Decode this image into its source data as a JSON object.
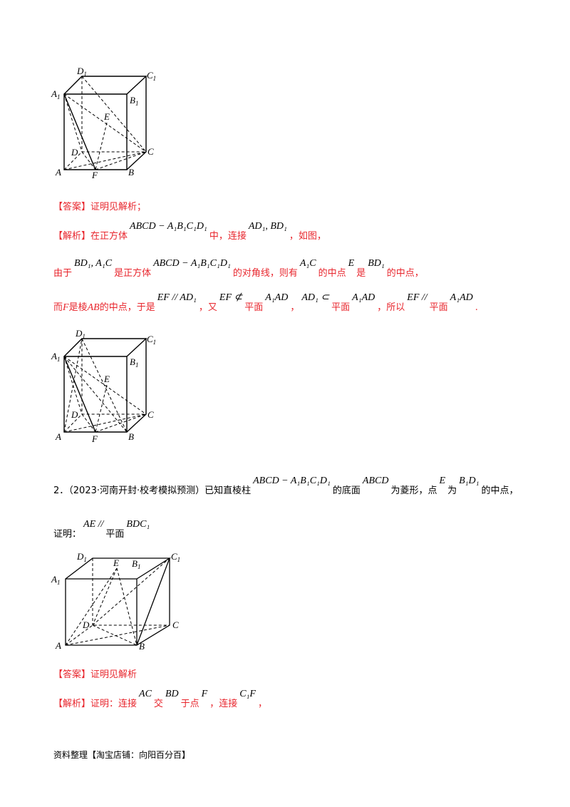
{
  "figure1": {
    "labels": [
      "A",
      "B",
      "C",
      "D",
      "A1",
      "B1",
      "C1",
      "D1",
      "E",
      "F"
    ]
  },
  "q1": {
    "answer_tag": "【答案】",
    "answer": "证明见解析；",
    "analysis_tag": "【解析】",
    "l1": [
      "在正方体",
      "ABCD − A₁B₁C₁D₁",
      "中，连接",
      "AD₁, BD₁",
      "，如图，"
    ],
    "l2": [
      "由于",
      "BD₁, A₁C",
      "是正方体",
      "ABCD − A₁B₁C₁D₁",
      "的对角线，则有",
      "A₁C",
      "的中点",
      "E",
      "是",
      "BD₁",
      "的中点，"
    ],
    "l3": [
      "而",
      "F",
      "是棱",
      "AB",
      "的中点，于是",
      "EF // AD₁",
      "，又",
      "EF ⊄",
      "平面",
      "A₁AD",
      "，",
      "AD₁ ⊂",
      "平面",
      "A₁AD",
      "，所以",
      "EF //",
      "平面",
      "A₁AD",
      "."
    ]
  },
  "q2": {
    "stem": [
      "2．（2023·河南开封·校考模拟预测）已知直棱柱",
      "ABCD − A₁B₁C₁D₁",
      "的底面",
      "ABCD",
      "为菱形，点",
      "E",
      "为",
      "B₁D₁",
      "的中点，"
    ],
    "prove": [
      "证明：",
      "AE //",
      "平面",
      "BDC₁"
    ],
    "answer_tag": "【答案】",
    "answer": "证明见解析",
    "analysis_tag": "【解析】",
    "a1": [
      "证明：连接",
      "AC",
      "交",
      "BD",
      "于点",
      "F",
      "，连接",
      "C₁F",
      "，"
    ]
  },
  "footer": "资料整理【淘宝店铺：向阳百分百】"
}
